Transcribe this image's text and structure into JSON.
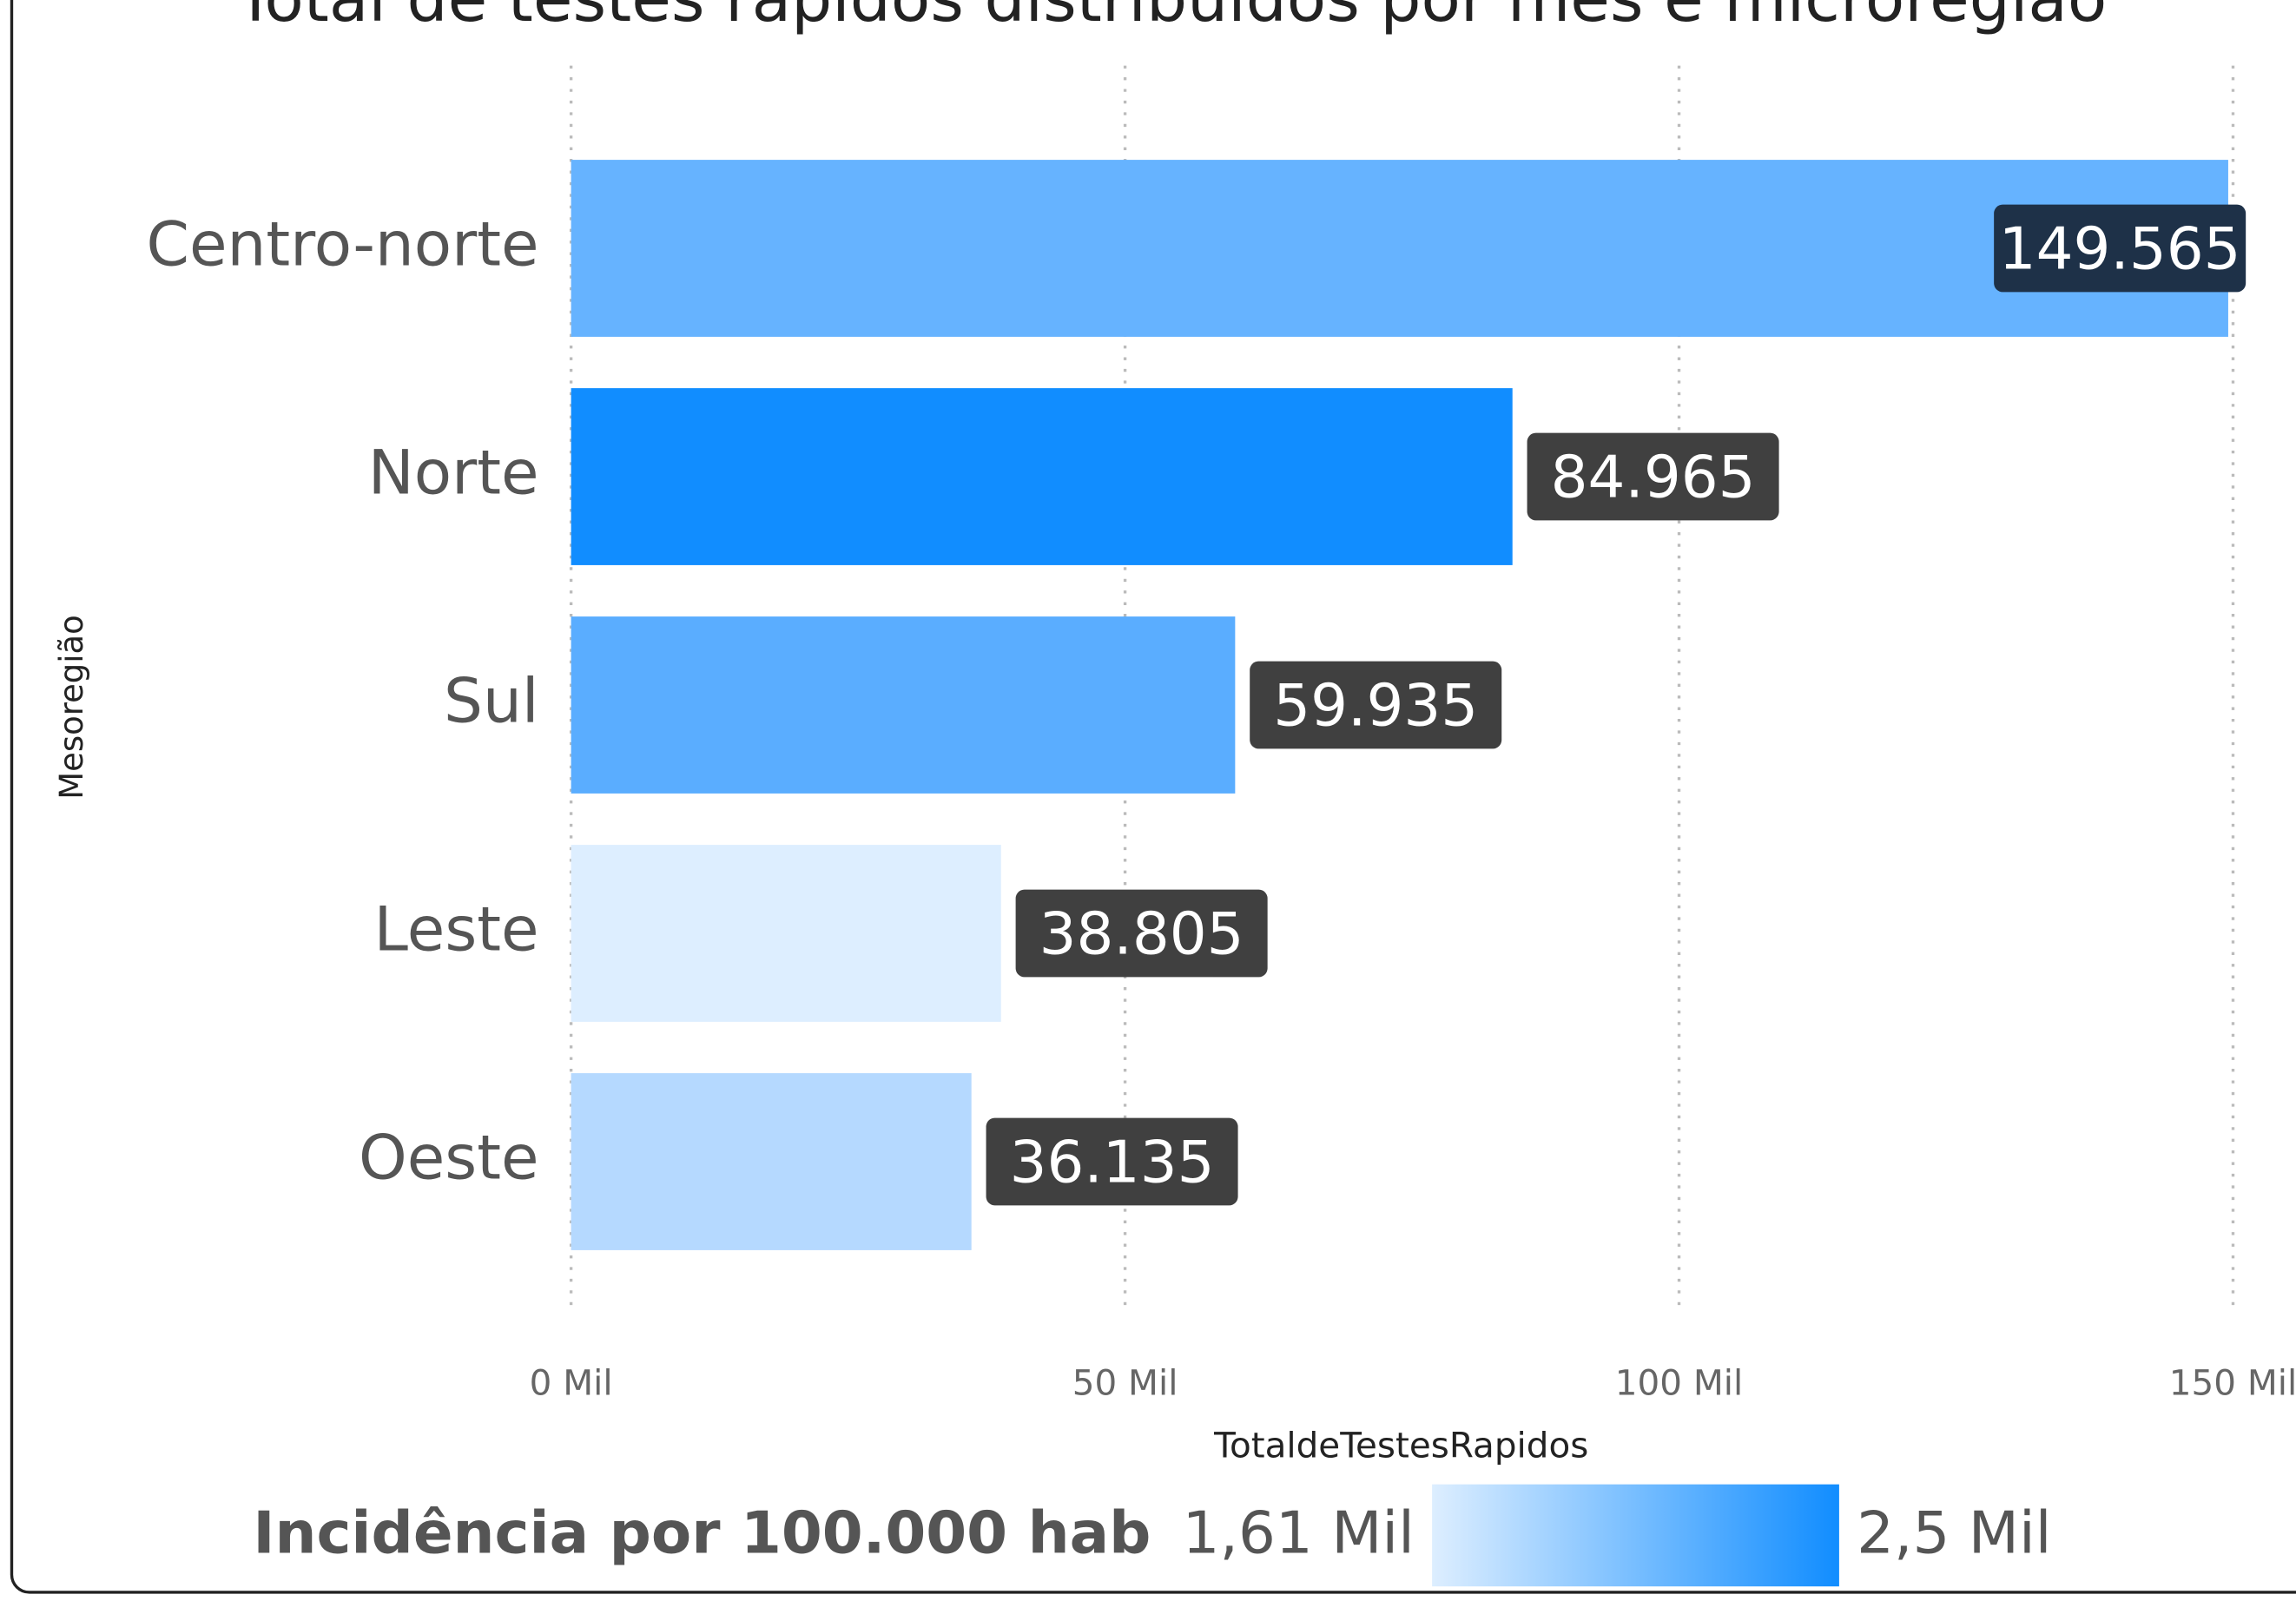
{
  "chart_data": {
    "type": "bar",
    "orientation": "horizontal",
    "title": "Total de testes rápidos distribuídos por mês e microregião",
    "categories": [
      "Centro-norte",
      "Norte",
      "Sul",
      "Leste",
      "Oeste"
    ],
    "values": [
      149565,
      84965,
      59935,
      38805,
      36135
    ],
    "value_labels": [
      "149.565",
      "84.965",
      "59.935",
      "38.805",
      "36.135"
    ],
    "colors": [
      "#66b3ff",
      "#118dff",
      "#5aadff",
      "#ddeeff",
      "#b5d9ff"
    ],
    "xlim": [
      0,
      150000
    ],
    "xticks": [
      {
        "value": 0,
        "label": "0 Mil"
      },
      {
        "value": 50000,
        "label": "50 Mil"
      },
      {
        "value": 100000,
        "label": "100 Mil"
      },
      {
        "value": 150000,
        "label": "150 Mil"
      }
    ],
    "grid": true,
    "x_label": "TotaldeTestesRapidos",
    "y_label": "Mesoregião",
    "legend": {
      "title": "Incidência por 100.000 hab",
      "min": {
        "value": 1610,
        "label": "1,61 Mil"
      },
      "max": {
        "value": 2500,
        "label": "2,5 Mil"
      },
      "colors": [
        "#ddeeff",
        "#118dff"
      ]
    }
  }
}
